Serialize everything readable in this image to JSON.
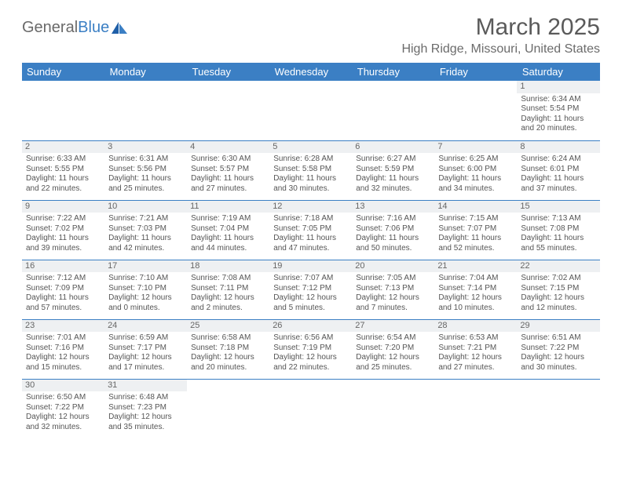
{
  "logo": {
    "part1": "General",
    "part2": "Blue"
  },
  "title": "March 2025",
  "location": "High Ridge, Missouri, United States",
  "colors": {
    "header_bg": "#3b7fc4",
    "header_text": "#ffffff",
    "daynum_bg": "#eef0f2",
    "border": "#3b7fc4",
    "body_text": "#555555"
  },
  "weekdays": [
    "Sunday",
    "Monday",
    "Tuesday",
    "Wednesday",
    "Thursday",
    "Friday",
    "Saturday"
  ],
  "weeks": [
    [
      null,
      null,
      null,
      null,
      null,
      null,
      {
        "n": "1",
        "sr": "Sunrise: 6:34 AM",
        "ss": "Sunset: 5:54 PM",
        "dl": "Daylight: 11 hours and 20 minutes."
      }
    ],
    [
      {
        "n": "2",
        "sr": "Sunrise: 6:33 AM",
        "ss": "Sunset: 5:55 PM",
        "dl": "Daylight: 11 hours and 22 minutes."
      },
      {
        "n": "3",
        "sr": "Sunrise: 6:31 AM",
        "ss": "Sunset: 5:56 PM",
        "dl": "Daylight: 11 hours and 25 minutes."
      },
      {
        "n": "4",
        "sr": "Sunrise: 6:30 AM",
        "ss": "Sunset: 5:57 PM",
        "dl": "Daylight: 11 hours and 27 minutes."
      },
      {
        "n": "5",
        "sr": "Sunrise: 6:28 AM",
        "ss": "Sunset: 5:58 PM",
        "dl": "Daylight: 11 hours and 30 minutes."
      },
      {
        "n": "6",
        "sr": "Sunrise: 6:27 AM",
        "ss": "Sunset: 5:59 PM",
        "dl": "Daylight: 11 hours and 32 minutes."
      },
      {
        "n": "7",
        "sr": "Sunrise: 6:25 AM",
        "ss": "Sunset: 6:00 PM",
        "dl": "Daylight: 11 hours and 34 minutes."
      },
      {
        "n": "8",
        "sr": "Sunrise: 6:24 AM",
        "ss": "Sunset: 6:01 PM",
        "dl": "Daylight: 11 hours and 37 minutes."
      }
    ],
    [
      {
        "n": "9",
        "sr": "Sunrise: 7:22 AM",
        "ss": "Sunset: 7:02 PM",
        "dl": "Daylight: 11 hours and 39 minutes."
      },
      {
        "n": "10",
        "sr": "Sunrise: 7:21 AM",
        "ss": "Sunset: 7:03 PM",
        "dl": "Daylight: 11 hours and 42 minutes."
      },
      {
        "n": "11",
        "sr": "Sunrise: 7:19 AM",
        "ss": "Sunset: 7:04 PM",
        "dl": "Daylight: 11 hours and 44 minutes."
      },
      {
        "n": "12",
        "sr": "Sunrise: 7:18 AM",
        "ss": "Sunset: 7:05 PM",
        "dl": "Daylight: 11 hours and 47 minutes."
      },
      {
        "n": "13",
        "sr": "Sunrise: 7:16 AM",
        "ss": "Sunset: 7:06 PM",
        "dl": "Daylight: 11 hours and 50 minutes."
      },
      {
        "n": "14",
        "sr": "Sunrise: 7:15 AM",
        "ss": "Sunset: 7:07 PM",
        "dl": "Daylight: 11 hours and 52 minutes."
      },
      {
        "n": "15",
        "sr": "Sunrise: 7:13 AM",
        "ss": "Sunset: 7:08 PM",
        "dl": "Daylight: 11 hours and 55 minutes."
      }
    ],
    [
      {
        "n": "16",
        "sr": "Sunrise: 7:12 AM",
        "ss": "Sunset: 7:09 PM",
        "dl": "Daylight: 11 hours and 57 minutes."
      },
      {
        "n": "17",
        "sr": "Sunrise: 7:10 AM",
        "ss": "Sunset: 7:10 PM",
        "dl": "Daylight: 12 hours and 0 minutes."
      },
      {
        "n": "18",
        "sr": "Sunrise: 7:08 AM",
        "ss": "Sunset: 7:11 PM",
        "dl": "Daylight: 12 hours and 2 minutes."
      },
      {
        "n": "19",
        "sr": "Sunrise: 7:07 AM",
        "ss": "Sunset: 7:12 PM",
        "dl": "Daylight: 12 hours and 5 minutes."
      },
      {
        "n": "20",
        "sr": "Sunrise: 7:05 AM",
        "ss": "Sunset: 7:13 PM",
        "dl": "Daylight: 12 hours and 7 minutes."
      },
      {
        "n": "21",
        "sr": "Sunrise: 7:04 AM",
        "ss": "Sunset: 7:14 PM",
        "dl": "Daylight: 12 hours and 10 minutes."
      },
      {
        "n": "22",
        "sr": "Sunrise: 7:02 AM",
        "ss": "Sunset: 7:15 PM",
        "dl": "Daylight: 12 hours and 12 minutes."
      }
    ],
    [
      {
        "n": "23",
        "sr": "Sunrise: 7:01 AM",
        "ss": "Sunset: 7:16 PM",
        "dl": "Daylight: 12 hours and 15 minutes."
      },
      {
        "n": "24",
        "sr": "Sunrise: 6:59 AM",
        "ss": "Sunset: 7:17 PM",
        "dl": "Daylight: 12 hours and 17 minutes."
      },
      {
        "n": "25",
        "sr": "Sunrise: 6:58 AM",
        "ss": "Sunset: 7:18 PM",
        "dl": "Daylight: 12 hours and 20 minutes."
      },
      {
        "n": "26",
        "sr": "Sunrise: 6:56 AM",
        "ss": "Sunset: 7:19 PM",
        "dl": "Daylight: 12 hours and 22 minutes."
      },
      {
        "n": "27",
        "sr": "Sunrise: 6:54 AM",
        "ss": "Sunset: 7:20 PM",
        "dl": "Daylight: 12 hours and 25 minutes."
      },
      {
        "n": "28",
        "sr": "Sunrise: 6:53 AM",
        "ss": "Sunset: 7:21 PM",
        "dl": "Daylight: 12 hours and 27 minutes."
      },
      {
        "n": "29",
        "sr": "Sunrise: 6:51 AM",
        "ss": "Sunset: 7:22 PM",
        "dl": "Daylight: 12 hours and 30 minutes."
      }
    ],
    [
      {
        "n": "30",
        "sr": "Sunrise: 6:50 AM",
        "ss": "Sunset: 7:22 PM",
        "dl": "Daylight: 12 hours and 32 minutes."
      },
      {
        "n": "31",
        "sr": "Sunrise: 6:48 AM",
        "ss": "Sunset: 7:23 PM",
        "dl": "Daylight: 12 hours and 35 minutes."
      },
      null,
      null,
      null,
      null,
      null
    ]
  ]
}
